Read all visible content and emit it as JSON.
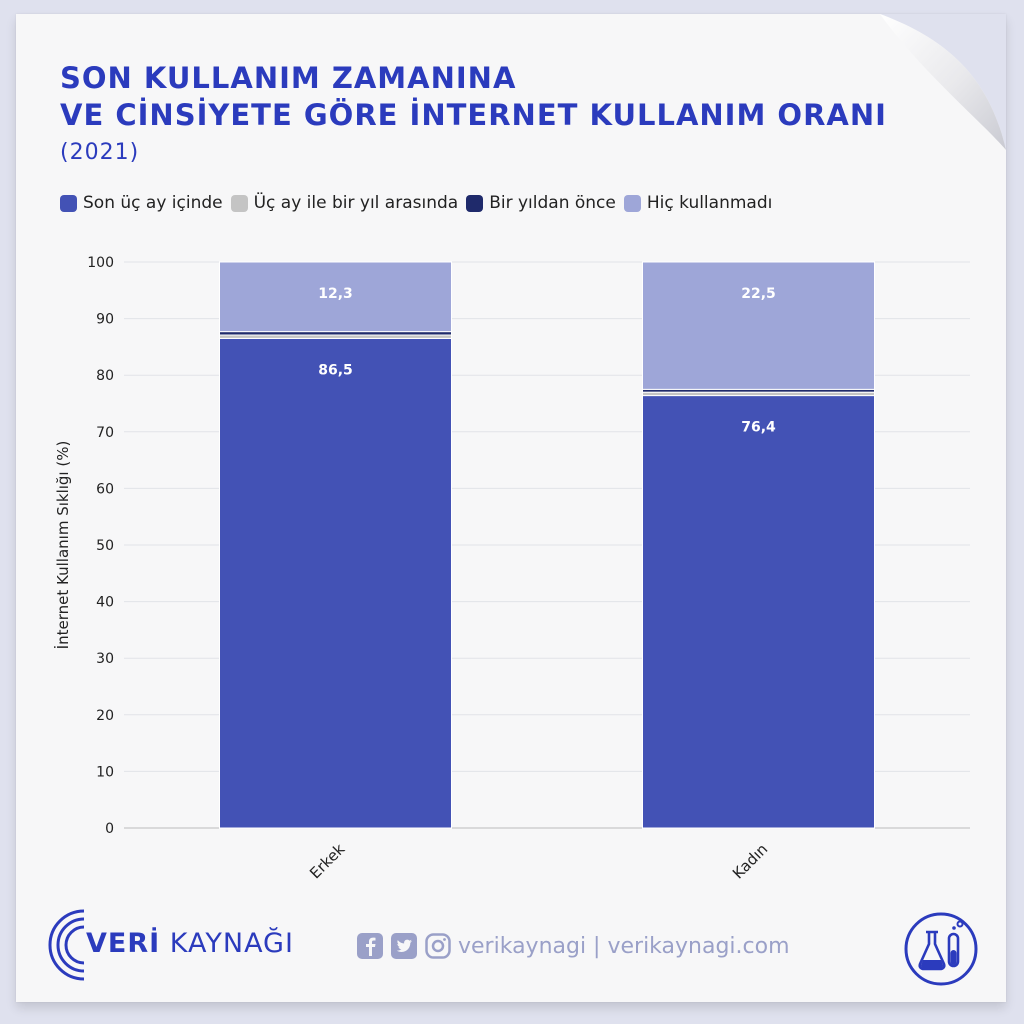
{
  "title": {
    "line1": "SON KULLANIM ZAMANINA",
    "line2": "VE CİNSİYETE GÖRE İNTERNET KULLANIM ORANI",
    "year": "(2021)"
  },
  "legend": [
    {
      "label": "Son üç ay içinde",
      "color": "#4352b5"
    },
    {
      "label": "Üç ay ile bir yıl arasında",
      "color": "#c4c4c4"
    },
    {
      "label": "Bir yıldan önce",
      "color": "#1f2a6b"
    },
    {
      "label": "Hiç kullanmadı",
      "color": "#9ea6d8"
    }
  ],
  "chart_data": {
    "type": "bar",
    "stacked": true,
    "categories": [
      "Erkek",
      "Kadın"
    ],
    "series": [
      {
        "name": "Son üç ay içinde",
        "values": [
          86.5,
          76.4
        ],
        "color": "#4352b5",
        "labels": [
          "86,5",
          "76,4"
        ]
      },
      {
        "name": "Üç ay ile bir yıl arasında",
        "values": [
          0.6,
          0.6
        ],
        "color": "#c4c4c4"
      },
      {
        "name": "Bir yıldan önce",
        "values": [
          0.6,
          0.5
        ],
        "color": "#1f2a6b"
      },
      {
        "name": "Hiç kullanmadı",
        "values": [
          12.3,
          22.5
        ],
        "color": "#9ea6d8",
        "labels": [
          "12,3",
          "22,5"
        ]
      }
    ],
    "ylabel": "İnternet Kullanım Sıklığı (%)",
    "xlabel": "",
    "ylim": [
      0,
      100
    ],
    "yticks": [
      0,
      10,
      20,
      30,
      40,
      50,
      60,
      70,
      80,
      90,
      100
    ],
    "grid": true,
    "legend_position": "top-left"
  },
  "footer": {
    "brand_bold": "VERİ",
    "brand_rest": " KAYNAĞI",
    "social_text": "verikaynagi | verikaynagi.com",
    "social_icons": [
      "facebook-icon",
      "twitter-icon",
      "instagram-icon"
    ],
    "lab_icon": "flask-icon"
  }
}
